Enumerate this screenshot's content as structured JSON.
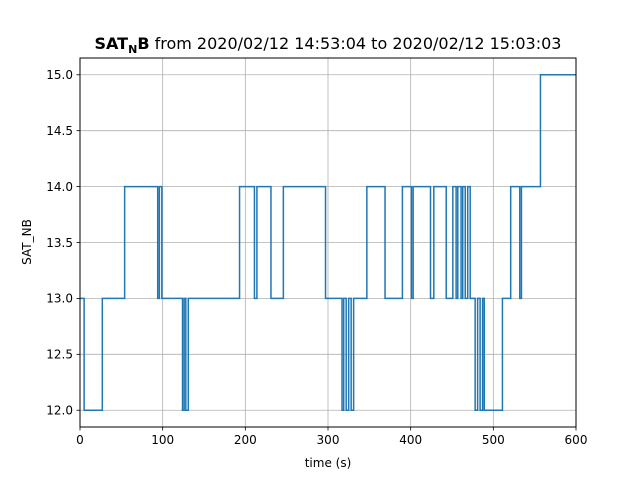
{
  "chart_data": {
    "type": "line",
    "title": {
      "bold_main": "SAT",
      "bold_sub": "N",
      "bold_tail": "B",
      "rest": " from 2020/02/12 14:53:04 to 2020/02/12 15:03:03"
    },
    "xlabel": "time (s)",
    "ylabel": "SAT_NB",
    "xlim": [
      0,
      600
    ],
    "ylim": [
      11.85,
      15.15
    ],
    "xticks": [
      0,
      100,
      200,
      300,
      400,
      500,
      600
    ],
    "yticks": [
      12.0,
      12.5,
      13.0,
      13.5,
      14.0,
      14.5,
      15.0
    ],
    "xtick_labels": [
      "0",
      "100",
      "200",
      "300",
      "400",
      "500",
      "600"
    ],
    "ytick_labels": [
      "12.0",
      "12.5",
      "13.0",
      "13.5",
      "14.0",
      "14.5",
      "15.0"
    ],
    "grid": true,
    "step_where": "post",
    "series": [
      {
        "color": "#1f77b4",
        "points": [
          [
            0,
            13
          ],
          [
            5,
            12
          ],
          [
            27,
            13
          ],
          [
            54,
            14
          ],
          [
            94,
            13
          ],
          [
            96,
            14
          ],
          [
            99,
            13
          ],
          [
            124,
            12
          ],
          [
            126,
            13
          ],
          [
            128,
            12
          ],
          [
            131,
            13
          ],
          [
            193,
            14
          ],
          [
            211,
            13
          ],
          [
            214,
            14
          ],
          [
            231,
            13
          ],
          [
            246,
            14
          ],
          [
            297,
            13
          ],
          [
            317,
            12
          ],
          [
            319,
            13
          ],
          [
            322,
            12
          ],
          [
            325,
            13
          ],
          [
            328,
            12
          ],
          [
            331,
            13
          ],
          [
            347,
            14
          ],
          [
            369,
            13
          ],
          [
            390,
            14
          ],
          [
            401,
            13
          ],
          [
            403,
            14
          ],
          [
            424,
            13
          ],
          [
            428,
            14
          ],
          [
            443,
            13
          ],
          [
            451,
            14
          ],
          [
            455,
            13
          ],
          [
            457,
            14
          ],
          [
            461,
            13
          ],
          [
            463,
            14
          ],
          [
            466,
            13
          ],
          [
            469,
            14
          ],
          [
            472,
            13
          ],
          [
            478,
            12
          ],
          [
            481,
            13
          ],
          [
            484,
            12
          ],
          [
            487,
            13
          ],
          [
            489,
            12
          ],
          [
            511,
            13
          ],
          [
            521,
            14
          ],
          [
            532,
            13
          ],
          [
            534,
            14
          ],
          [
            557,
            15
          ],
          [
            600,
            15
          ]
        ]
      }
    ]
  }
}
